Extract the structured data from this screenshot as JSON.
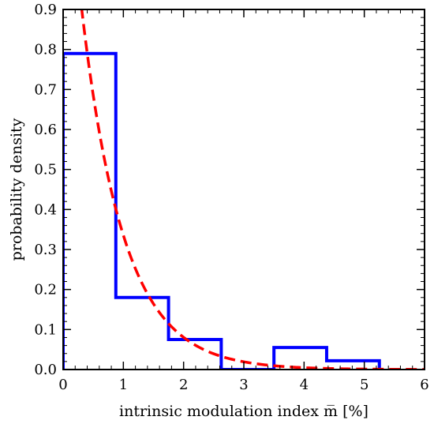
{
  "chart_data": {
    "type": "bar",
    "xlabel": "intrinsic modulation index m̅ [%]",
    "ylabel": "probability density",
    "xlim": [
      0,
      6
    ],
    "ylim": [
      0,
      0.9
    ],
    "xticks": [
      "0",
      "1",
      "2",
      "3",
      "4",
      "5",
      "6"
    ],
    "yticks": [
      "0.0",
      "0.1",
      "0.2",
      "0.3",
      "0.4",
      "0.5",
      "0.6",
      "0.7",
      "0.8",
      "0.9"
    ],
    "grid": false,
    "histogram": {
      "style": "step",
      "color": "#0000ff",
      "bin_edges": [
        0,
        0.875,
        1.75,
        2.625,
        3.5,
        4.375,
        5.25
      ],
      "values": [
        0.79,
        0.18,
        0.075,
        0.0,
        0.055,
        0.022
      ]
    },
    "fit_curve": {
      "style": "dashed",
      "color": "#ff0000",
      "function": "exponential",
      "amplitude": 1.4,
      "scale": 0.7
    }
  }
}
